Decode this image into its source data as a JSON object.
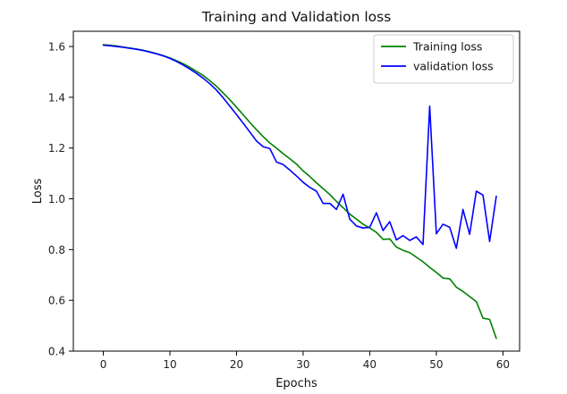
{
  "chart_data": {
    "type": "line",
    "title": "Training and Validation loss",
    "xlabel": "Epochs",
    "ylabel": "Loss",
    "xlim": [
      -4.5,
      62.5
    ],
    "ylim": [
      0.4,
      1.66
    ],
    "xticks": [
      0,
      10,
      20,
      30,
      40,
      50,
      60
    ],
    "yticks": [
      0.4,
      0.6,
      0.8,
      1.0,
      1.2,
      1.4,
      1.6
    ],
    "xtick_labels": [
      "0",
      "10",
      "20",
      "30",
      "40",
      "50",
      "60"
    ],
    "ytick_labels": [
      "0.4",
      "0.6",
      "0.8",
      "1.0",
      "1.2",
      "1.4",
      "1.6"
    ],
    "grid": false,
    "legend_position": "top-right",
    "series": [
      {
        "name": "Training loss",
        "color": "#008000",
        "x": [
          0,
          1,
          2,
          3,
          4,
          5,
          6,
          7,
          8,
          9,
          10,
          11,
          12,
          13,
          14,
          15,
          16,
          17,
          18,
          19,
          20,
          21,
          22,
          23,
          24,
          25,
          26,
          27,
          28,
          29,
          30,
          31,
          32,
          33,
          34,
          35,
          36,
          37,
          38,
          39,
          40,
          41,
          42,
          43,
          44,
          45,
          46,
          47,
          48,
          49,
          50,
          51,
          52,
          53,
          54,
          55,
          56,
          57,
          58,
          59
        ],
        "values": [
          1.607,
          1.605,
          1.602,
          1.598,
          1.594,
          1.59,
          1.585,
          1.579,
          1.572,
          1.564,
          1.555,
          1.544,
          1.532,
          1.518,
          1.502,
          1.486,
          1.465,
          1.443,
          1.417,
          1.39,
          1.361,
          1.331,
          1.301,
          1.272,
          1.245,
          1.22,
          1.2,
          1.178,
          1.158,
          1.137,
          1.11,
          1.088,
          1.063,
          1.04,
          1.017,
          0.99,
          0.965,
          0.94,
          0.92,
          0.9,
          0.885,
          0.868,
          0.84,
          0.842,
          0.81,
          0.797,
          0.788,
          0.77,
          0.752,
          0.73,
          0.71,
          0.688,
          0.685,
          0.652,
          0.635,
          0.615,
          0.595,
          0.53,
          0.525,
          0.45
        ]
      },
      {
        "name": "validation loss",
        "color": "#0000ff",
        "x": [
          0,
          1,
          2,
          3,
          4,
          5,
          6,
          7,
          8,
          9,
          10,
          11,
          12,
          13,
          14,
          15,
          16,
          17,
          18,
          19,
          20,
          21,
          22,
          23,
          24,
          25,
          26,
          27,
          28,
          29,
          30,
          31,
          32,
          33,
          34,
          35,
          36,
          37,
          38,
          39,
          40,
          41,
          42,
          43,
          44,
          45,
          46,
          47,
          48,
          49,
          50,
          51,
          52,
          53,
          54,
          55,
          56,
          57,
          58,
          59
        ],
        "values": [
          1.605,
          1.603,
          1.6,
          1.597,
          1.593,
          1.589,
          1.584,
          1.578,
          1.571,
          1.563,
          1.553,
          1.541,
          1.527,
          1.511,
          1.494,
          1.475,
          1.453,
          1.428,
          1.398,
          1.365,
          1.332,
          1.298,
          1.263,
          1.228,
          1.205,
          1.198,
          1.145,
          1.135,
          1.113,
          1.09,
          1.065,
          1.045,
          1.03,
          0.982,
          0.982,
          0.958,
          1.018,
          0.92,
          0.893,
          0.885,
          0.888,
          0.945,
          0.875,
          0.91,
          0.838,
          0.855,
          0.836,
          0.85,
          0.82,
          1.365,
          0.862,
          0.9,
          0.888,
          0.805,
          0.958,
          0.86,
          1.03,
          1.015,
          0.832,
          1.01
        ]
      }
    ]
  }
}
